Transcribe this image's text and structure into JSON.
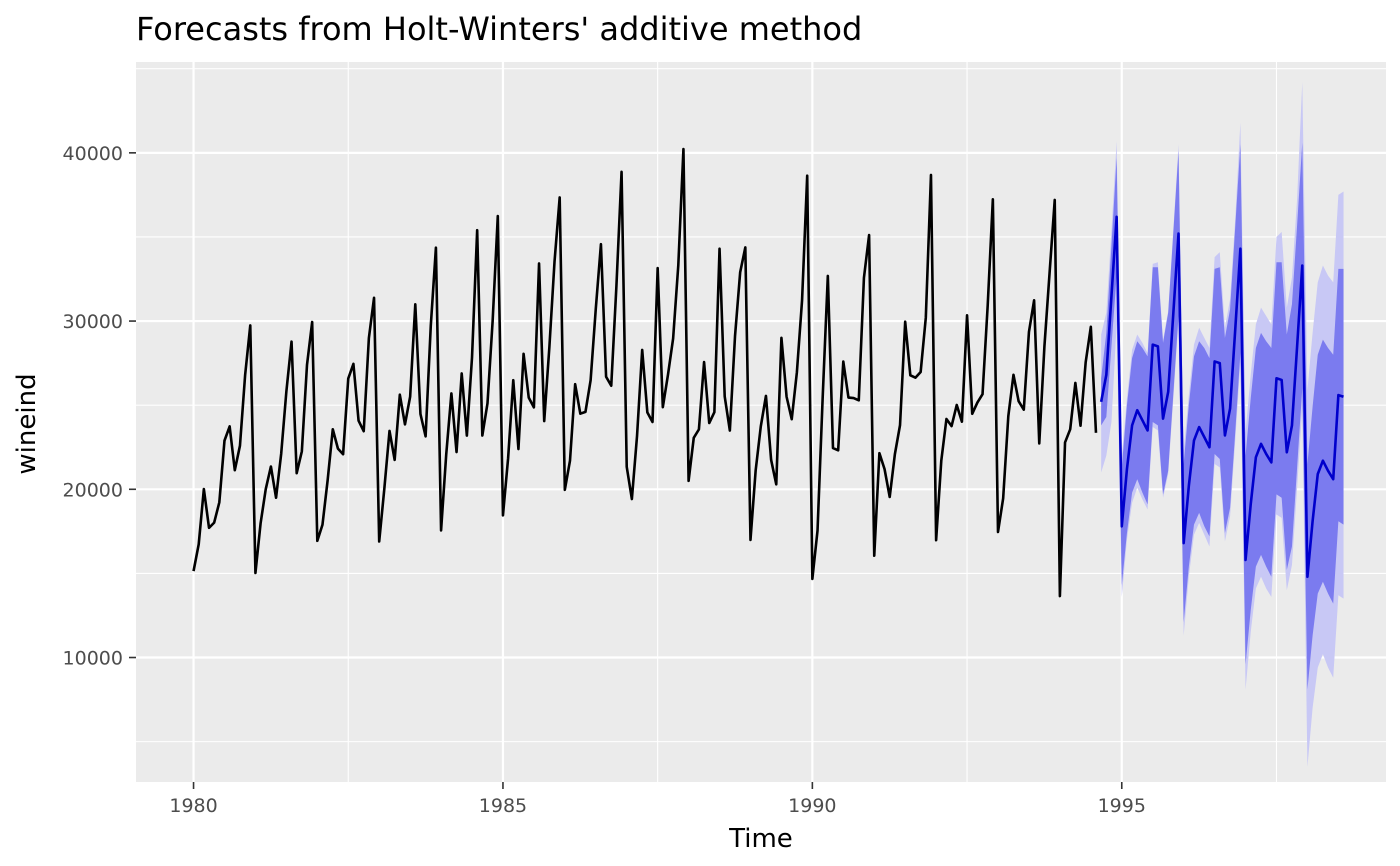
{
  "chart_data": {
    "type": "line",
    "title": "Forecasts from Holt-Winters' additive method",
    "xlabel": "Time",
    "ylabel": "wineind",
    "xlim": [
      1979.07,
      1999.27
    ],
    "ylim": [
      2600,
      45400
    ],
    "x_ticks": [
      1980,
      1985,
      1990,
      1995
    ],
    "y_ticks": [
      10000,
      20000,
      30000,
      40000
    ],
    "grid": true,
    "background": "#EBEBEB",
    "grid_color": "#FFFFFF",
    "series": [
      {
        "role": "observed",
        "color": "#000000",
        "start": 1980.0,
        "frequency": 12,
        "values": [
          15136,
          16733,
          20016,
          17708,
          18019,
          19227,
          22893,
          23739,
          21133,
          22591,
          26786,
          29740,
          15028,
          17977,
          20008,
          21354,
          19498,
          22125,
          25817,
          28779,
          20960,
          22254,
          27392,
          29945,
          16933,
          17892,
          20533,
          23569,
          22417,
          22084,
          26580,
          27454,
          24081,
          23451,
          28991,
          31386,
          16896,
          20045,
          23471,
          21747,
          25621,
          23859,
          25500,
          30998,
          24475,
          23145,
          29701,
          34365,
          17556,
          22077,
          25702,
          22214,
          26886,
          23191,
          27831,
          35406,
          23195,
          25110,
          30009,
          36242,
          18450,
          21845,
          26488,
          22394,
          28057,
          25451,
          24872,
          33424,
          24052,
          28449,
          33533,
          37351,
          19969,
          21701,
          26249,
          24493,
          24603,
          26485,
          30723,
          34569,
          26689,
          26157,
          32064,
          38870,
          21337,
          19419,
          23166,
          28286,
          24570,
          24001,
          33151,
          24878,
          26804,
          28967,
          33311,
          40226,
          20504,
          23060,
          23562,
          27562,
          23940,
          24584,
          34303,
          25517,
          23494,
          29095,
          32903,
          34379,
          16991,
          21109,
          23740,
          25552,
          21752,
          20294,
          29009,
          25500,
          24166,
          26960,
          31222,
          38641,
          14672,
          17543,
          25453,
          32683,
          22449,
          22316,
          27595,
          25451,
          25421,
          25288,
          32568,
          35110,
          16052,
          22146,
          21198,
          19543,
          22084,
          23816,
          29961,
          26773,
          26635,
          26972,
          30207,
          38687,
          16974,
          21697,
          24179,
          23757,
          25013,
          24019,
          30345,
          24488,
          25156,
          25650,
          30923,
          37240,
          17466,
          19463,
          24352,
          26805,
          25236,
          24735,
          29356,
          31234,
          22724,
          28496,
          32857,
          37198,
          13652,
          22784,
          23565,
          26323,
          23779,
          27549,
          29660,
          23356
        ]
      },
      {
        "role": "forecast",
        "color": "#0000CC",
        "start": 1994.667,
        "frequency": 12,
        "values": [
          25200,
          26800,
          31500,
          36200,
          17800,
          21200,
          23800,
          24700,
          24100,
          23500,
          28600,
          28500,
          24200,
          25800,
          30500,
          35200,
          16800,
          20200,
          22900,
          23700,
          23100,
          22500,
          27600,
          27500,
          23200,
          24800,
          29500,
          34300,
          15800,
          19100,
          21900,
          22700,
          22100,
          21600,
          26600,
          26500,
          22200,
          23800,
          28500,
          33300,
          14800,
          18100,
          20900,
          21700,
          21100,
          20600,
          25600,
          25500
        ]
      }
    ],
    "intervals": [
      {
        "level": "80%",
        "color": "#7B7BEF",
        "start": 1994.667,
        "frequency": 12,
        "lower": [
          23800,
          24300,
          28500,
          32700,
          14300,
          17400,
          19800,
          20600,
          19800,
          19100,
          24000,
          23800,
          19700,
          21100,
          25700,
          30300,
          12100,
          15400,
          17900,
          18600,
          17800,
          17200,
          22100,
          21800,
          17400,
          18900,
          23400,
          28100,
          9600,
          12800,
          15400,
          16100,
          15400,
          14800,
          19700,
          19500,
          15200,
          16600,
          21300,
          26000,
          8100,
          11300,
          13800,
          14500,
          13800,
          13200,
          18100,
          17900
        ],
        "upper": [
          26600,
          29300,
          34500,
          39700,
          21300,
          25000,
          27800,
          28800,
          28400,
          27900,
          33200,
          33200,
          28700,
          30500,
          35300,
          40100,
          21500,
          25000,
          27900,
          28800,
          28400,
          27800,
          33100,
          33200,
          29000,
          30700,
          35600,
          40500,
          22000,
          25400,
          28400,
          29300,
          28800,
          28400,
          33500,
          33500,
          29200,
          31000,
          35700,
          40600,
          21500,
          24900,
          28000,
          28900,
          28400,
          28000,
          33100,
          33100
        ]
      },
      {
        "level": "95%",
        "color": "#C8C8F5",
        "start": 1994.667,
        "frequency": 12,
        "lower": [
          21000,
          22000,
          24000,
          29800,
          13600,
          17000,
          19200,
          20100,
          19400,
          18800,
          23700,
          23500,
          19500,
          20900,
          25400,
          30000,
          11300,
          14800,
          17300,
          18000,
          17300,
          16600,
          21500,
          21300,
          16900,
          18400,
          22900,
          27500,
          8100,
          11500,
          14100,
          14800,
          14100,
          13600,
          18500,
          18300,
          14000,
          15500,
          20100,
          24800,
          3500,
          7000,
          9400,
          10200,
          9400,
          8800,
          13700,
          13500
        ],
        "upper": [
          29200,
          30500,
          35400,
          40700,
          22000,
          25400,
          28300,
          29200,
          28700,
          28100,
          33400,
          33500,
          28900,
          30600,
          35500,
          40500,
          22300,
          25600,
          28600,
          29600,
          29000,
          28400,
          33800,
          34100,
          29600,
          31300,
          36100,
          41800,
          23400,
          26800,
          29800,
          30800,
          30300,
          29800,
          35000,
          35300,
          30800,
          32600,
          37300,
          44200,
          25900,
          29300,
          32300,
          33300,
          32700,
          32300,
          37500,
          37700
        ]
      }
    ]
  }
}
